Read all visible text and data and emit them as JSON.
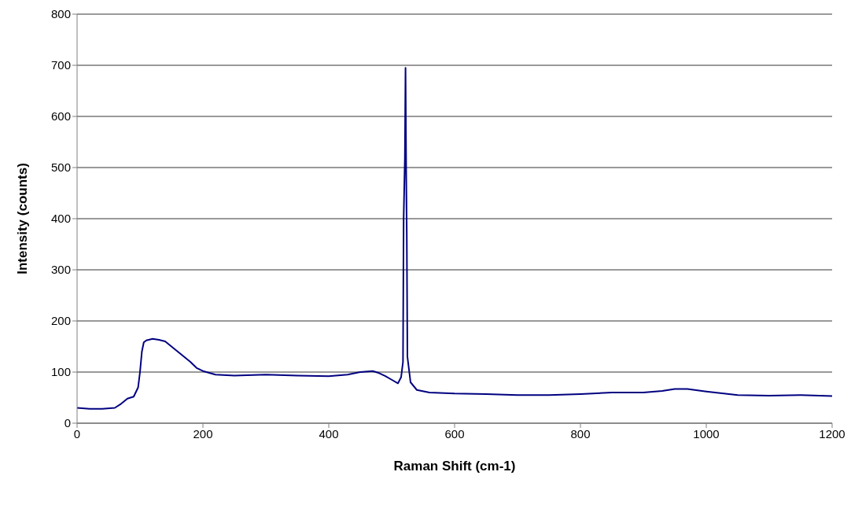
{
  "chart_data": {
    "type": "line",
    "xlabel": "Raman Shift (cm-1)",
    "ylabel": "Intensity (counts)",
    "x": [
      0,
      20,
      40,
      60,
      70,
      80,
      90,
      97,
      100,
      103,
      106,
      110,
      120,
      130,
      140,
      150,
      160,
      170,
      180,
      190,
      200,
      220,
      250,
      300,
      350,
      400,
      430,
      450,
      470,
      480,
      490,
      500,
      510,
      515,
      518,
      519,
      521,
      522,
      523,
      524,
      525,
      527,
      530,
      540,
      560,
      600,
      650,
      700,
      750,
      800,
      850,
      900,
      930,
      950,
      970,
      1000,
      1050,
      1100,
      1150,
      1200
    ],
    "series": [
      {
        "color": "#000080",
        "values": [
          30,
          28,
          28,
          30,
          38,
          48,
          52,
          70,
          100,
          140,
          158,
          162,
          165,
          163,
          160,
          150,
          140,
          130,
          120,
          108,
          102,
          95,
          93,
          95,
          93,
          92,
          95,
          100,
          102,
          98,
          92,
          85,
          78,
          90,
          120,
          400,
          520,
          695,
          500,
          370,
          130,
          110,
          80,
          65,
          60,
          58,
          57,
          55,
          55,
          57,
          60,
          60,
          63,
          67,
          67,
          62,
          55,
          54,
          55,
          53
        ]
      }
    ],
    "xlim": [
      0,
      1200
    ],
    "xticks": [
      0,
      200,
      400,
      600,
      800,
      1000,
      1200
    ],
    "ylim": [
      0,
      800
    ],
    "yticks": [
      0,
      100,
      200,
      300,
      400,
      500,
      600,
      700,
      800
    ],
    "grid": "y",
    "marker": "none"
  }
}
